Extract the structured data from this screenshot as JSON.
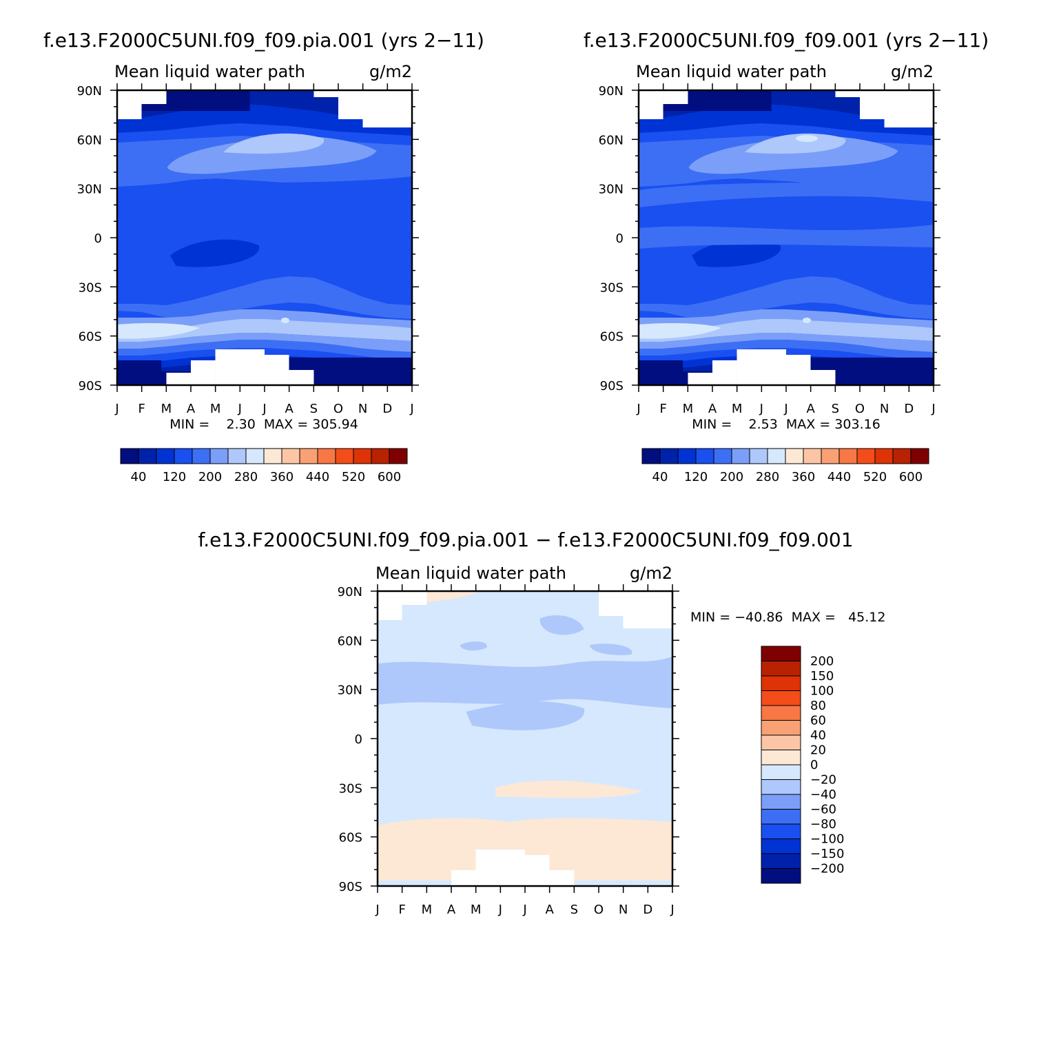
{
  "top_left": {
    "title": "f.e13.F2000C5UNI.f09_f09.pia.001 (yrs 2−11)",
    "subtitle_left": "Mean liquid water path",
    "subtitle_right": "g/m2",
    "minmax": "MIN =    2.30  MAX = 305.94"
  },
  "top_right": {
    "title": "f.e13.F2000C5UNI.f09_f09.001 (yrs 2−11)",
    "subtitle_left": "Mean liquid water path",
    "subtitle_right": "g/m2",
    "minmax": "MIN =    2.53  MAX = 303.16"
  },
  "diff": {
    "title": "f.e13.F2000C5UNI.f09_f09.pia.001 − f.e13.F2000C5UNI.f09_f09.001",
    "subtitle_left": "Mean liquid water path",
    "subtitle_right": "g/m2",
    "minmax": "MIN = −40.86  MAX =   45.12"
  },
  "axes": {
    "lat_labels": [
      "90N",
      "60N",
      "30N",
      "0",
      "30S",
      "60S",
      "90S"
    ],
    "month_labels": [
      "J",
      "F",
      "M",
      "A",
      "M",
      "J",
      "J",
      "A",
      "S",
      "O",
      "N",
      "D",
      "J"
    ]
  },
  "colorbar_abs": {
    "colors": [
      "#000e80",
      "#0022aa",
      "#0033d4",
      "#1a4ff0",
      "#3d6ff5",
      "#7b9ff8",
      "#aec8fb",
      "#d6e8fd",
      "#fde8d6",
      "#fcc6a6",
      "#f9a075",
      "#f77845",
      "#f44d1a",
      "#dd3306",
      "#b82200",
      "#7e0000"
    ],
    "labels": [
      "40",
      "120",
      "200",
      "280",
      "360",
      "440",
      "520",
      "600"
    ]
  },
  "colorbar_diff": {
    "colors": [
      "#7e0000",
      "#b82200",
      "#dd3306",
      "#f44d1a",
      "#f77845",
      "#f9a075",
      "#fcc6a6",
      "#fde8d6",
      "#d6e8fd",
      "#aec8fb",
      "#7b9ff8",
      "#3d6ff5",
      "#1a4ff0",
      "#0033d4",
      "#0022aa",
      "#000e80"
    ],
    "labels": [
      "200",
      "150",
      "100",
      "80",
      "60",
      "40",
      "20",
      "0",
      "−20",
      "−40",
      "−60",
      "−80",
      "−100",
      "−150",
      "−200"
    ]
  },
  "chart_data": [
    {
      "type": "heatmap",
      "title": "f.e13.F2000C5UNI.f09_f09.pia.001 (yrs 2−11)",
      "field": "Mean liquid water path",
      "units": "g/m2",
      "x_range": [
        "J",
        "J"
      ],
      "y_range": [
        "90S",
        "90N"
      ],
      "min": 2.3,
      "max": 305.94,
      "levels": [
        20,
        40,
        80,
        120,
        160,
        200,
        240,
        280,
        320,
        360,
        400,
        440,
        480,
        520,
        560,
        600
      ]
    },
    {
      "type": "heatmap",
      "title": "f.e13.F2000C5UNI.f09_f09.001 (yrs 2−11)",
      "field": "Mean liquid water path",
      "units": "g/m2",
      "x_range": [
        "J",
        "J"
      ],
      "y_range": [
        "90S",
        "90N"
      ],
      "min": 2.53,
      "max": 303.16,
      "levels": [
        20,
        40,
        80,
        120,
        160,
        200,
        240,
        280,
        320,
        360,
        400,
        440,
        480,
        520,
        560,
        600
      ]
    },
    {
      "type": "heatmap",
      "title": "f.e13.F2000C5UNI.f09_f09.pia.001 − f.e13.F2000C5UNI.f09_f09.001",
      "field": "Mean liquid water path",
      "units": "g/m2",
      "x_range": [
        "J",
        "J"
      ],
      "y_range": [
        "90S",
        "90N"
      ],
      "min": -40.86,
      "max": 45.12,
      "levels": [
        -200,
        -150,
        -100,
        -80,
        -60,
        -40,
        -20,
        0,
        20,
        40,
        60,
        80,
        100,
        150,
        200
      ]
    }
  ]
}
